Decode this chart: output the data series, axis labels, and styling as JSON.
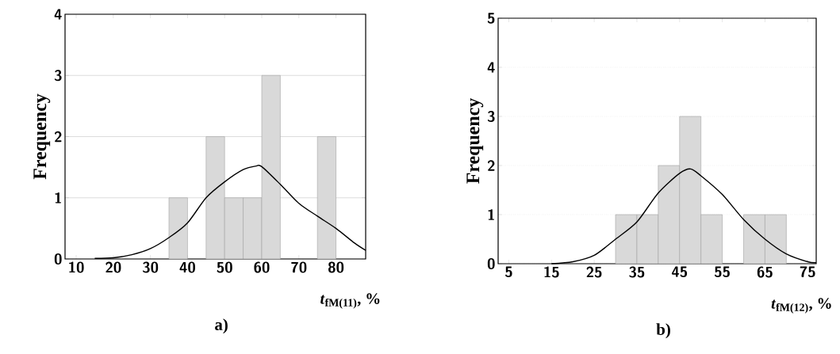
{
  "chart_data": [
    {
      "type": "histogram",
      "ylabel": "Frequency",
      "xlabel": "*t*$_{fM(11)}$, %",
      "annotations": [
        "a)"
      ],
      "bins": [
        35,
        40,
        45,
        50,
        55,
        60,
        65,
        70,
        75,
        80
      ],
      "values": [
        1,
        0,
        2,
        1,
        1,
        3,
        0,
        0,
        2
      ],
      "color": "#d9d9d9",
      "xlim": [
        7,
        88
      ],
      "ylim": [
        0,
        4
      ],
      "xticks": [
        10,
        20,
        30,
        40,
        50,
        60,
        70,
        80
      ],
      "yticks": [
        0,
        1,
        2,
        3,
        4
      ],
      "grid": "y",
      "series": [
        {
          "type": "line",
          "color": "#000000",
          "x": [
            15,
            20,
            25,
            30,
            35,
            40,
            45,
            50,
            55,
            58.5,
            60,
            65,
            70,
            75,
            80,
            85,
            88
          ],
          "values": [
            0.01,
            0.02,
            0.07,
            0.17,
            0.35,
            0.59,
            1.0,
            1.26,
            1.46,
            1.52,
            1.51,
            1.22,
            0.91,
            0.7,
            0.5,
            0.26,
            0.14
          ]
        }
      ]
    },
    {
      "type": "histogram",
      "ylabel": "Frequency",
      "xlabel": "*t*$_{fM(12)}$, %",
      "annotations": [
        "b)"
      ],
      "bins": [
        30,
        35,
        40,
        45,
        50,
        55,
        60,
        65,
        70
      ],
      "values": [
        1,
        1,
        2,
        3,
        1,
        0,
        1,
        1
      ],
      "color": "#d9d9d9",
      "xlim": [
        2.5,
        77
      ],
      "ylim": [
        0,
        5
      ],
      "xticks": [
        5,
        15,
        25,
        35,
        45,
        55,
        65,
        75
      ],
      "yticks": [
        0,
        1,
        2,
        3,
        4,
        5
      ],
      "grid": "y",
      "series": [
        {
          "type": "line",
          "color": "#000000",
          "x": [
            15,
            20,
            25,
            30,
            35,
            40,
            45,
            47.6,
            50,
            55,
            60,
            65,
            70,
            75,
            77
          ],
          "values": [
            0.0,
            0.04,
            0.17,
            0.5,
            0.85,
            1.44,
            1.84,
            1.93,
            1.79,
            1.41,
            0.9,
            0.5,
            0.2,
            0.04,
            0.02
          ]
        }
      ]
    }
  ]
}
